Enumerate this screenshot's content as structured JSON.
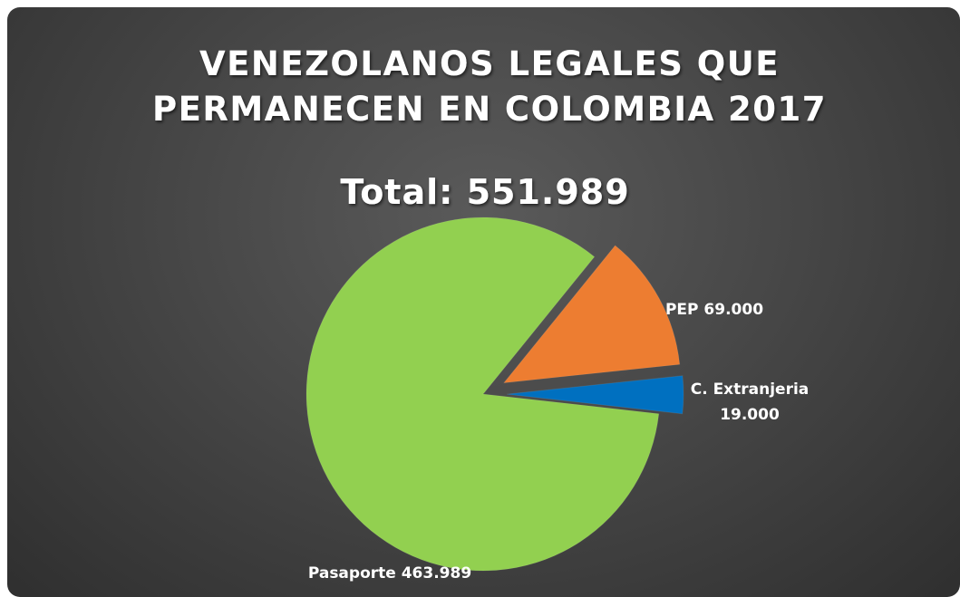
{
  "chart_data": {
    "type": "pie",
    "title_lines": [
      "VENEZOLANOS LEGALES QUE",
      "PERMANECEN EN COLOMBIA 2017"
    ],
    "subtitle": "Total: 551.989",
    "slices": [
      {
        "category": "PEP",
        "value": 69000,
        "label_lines": [
          "PEP 69.000"
        ],
        "color": "#ed7d31",
        "exploded": true
      },
      {
        "category": "C. Extranjeria",
        "value": 19000,
        "label_lines": [
          "C. Extranjeria",
          "19.000"
        ],
        "color": "#0070c0",
        "exploded": true
      },
      {
        "category": "Pasaporte",
        "value": 463989,
        "label_lines": [
          "Pasaporte 463.989"
        ],
        "color": "#92d050",
        "exploded": false
      }
    ],
    "total": 551989,
    "background_color": "#474747",
    "legend": "none"
  }
}
